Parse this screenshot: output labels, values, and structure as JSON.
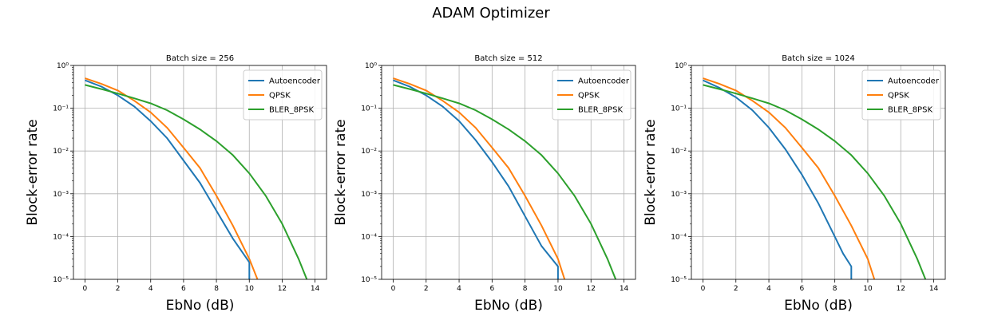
{
  "figure": {
    "title": "ADAM Optimizer"
  },
  "colors": {
    "Autoencoder": "#1f77b4",
    "QPSK": "#ff7f0e",
    "BLER_8PSK": "#2ca02c"
  },
  "chart_data": [
    {
      "type": "line",
      "title": "Batch size = 256",
      "xlabel": "EbNo (dB)",
      "ylabel": "Block-error rate",
      "xlim": [
        -0.7,
        14.7
      ],
      "ylim": [
        1e-05,
        1
      ],
      "yscale": "log",
      "xticks": [
        "0",
        "2",
        "4",
        "6",
        "8",
        "10",
        "12",
        "14"
      ],
      "yticks": [
        "10⁰",
        "10⁻¹",
        "10⁻²",
        "10⁻³",
        "10⁻⁴",
        "10⁻⁵"
      ],
      "grid": true,
      "legend_position": "top-right",
      "series": [
        {
          "name": "Autoencoder",
          "x": [
            0,
            1,
            2,
            3,
            4,
            5,
            6,
            7,
            8,
            9,
            10,
            10
          ],
          "y": [
            0.45,
            0.32,
            0.2,
            0.11,
            0.05,
            0.02,
            0.006,
            0.0018,
            0.0004,
            9e-05,
            2.5e-05,
            1e-05
          ]
        },
        {
          "name": "QPSK",
          "x": [
            0,
            1,
            2,
            3,
            4,
            5,
            6,
            7,
            8,
            9,
            10,
            10.5
          ],
          "y": [
            0.5,
            0.37,
            0.26,
            0.15,
            0.08,
            0.035,
            0.012,
            0.004,
            0.0009,
            0.00018,
            3e-05,
            1e-05
          ]
        },
        {
          "name": "BLER_8PSK",
          "x": [
            0,
            1,
            2,
            3,
            4,
            5,
            6,
            7,
            8,
            9,
            10,
            11,
            12,
            13,
            13.5
          ],
          "y": [
            0.35,
            0.28,
            0.22,
            0.17,
            0.13,
            0.09,
            0.055,
            0.032,
            0.017,
            0.008,
            0.003,
            0.0009,
            0.0002,
            3e-05,
            1e-05
          ]
        }
      ]
    },
    {
      "type": "line",
      "title": "Batch size = 512",
      "xlabel": "EbNo (dB)",
      "ylabel": "Block-error rate",
      "xlim": [
        -0.7,
        14.7
      ],
      "ylim": [
        1e-05,
        1
      ],
      "yscale": "log",
      "xticks": [
        "0",
        "2",
        "4",
        "6",
        "8",
        "10",
        "12",
        "14"
      ],
      "yticks": [
        "10⁰",
        "10⁻¹",
        "10⁻²",
        "10⁻³",
        "10⁻⁴",
        "10⁻⁵"
      ],
      "grid": true,
      "legend_position": "top-right",
      "series": [
        {
          "name": "Autoencoder",
          "x": [
            0,
            1,
            2,
            3,
            4,
            5,
            6,
            7,
            8,
            9,
            10,
            10
          ],
          "y": [
            0.45,
            0.32,
            0.2,
            0.11,
            0.05,
            0.018,
            0.0055,
            0.0015,
            0.0003,
            6e-05,
            2e-05,
            1e-05
          ]
        },
        {
          "name": "QPSK",
          "x": [
            0,
            1,
            2,
            3,
            4,
            5,
            6,
            7,
            8,
            9,
            10,
            10.4
          ],
          "y": [
            0.5,
            0.37,
            0.26,
            0.15,
            0.08,
            0.035,
            0.012,
            0.004,
            0.0009,
            0.00018,
            3e-05,
            1e-05
          ]
        },
        {
          "name": "BLER_8PSK",
          "x": [
            0,
            1,
            2,
            3,
            4,
            5,
            6,
            7,
            8,
            9,
            10,
            11,
            12,
            13,
            13.5
          ],
          "y": [
            0.35,
            0.28,
            0.22,
            0.17,
            0.13,
            0.09,
            0.055,
            0.032,
            0.017,
            0.008,
            0.003,
            0.0009,
            0.0002,
            3e-05,
            1e-05
          ]
        }
      ]
    },
    {
      "type": "line",
      "title": "Batch size = 1024",
      "xlabel": "EbNo (dB)",
      "ylabel": "Block-error rate",
      "xlim": [
        -0.7,
        14.7
      ],
      "ylim": [
        1e-05,
        1
      ],
      "yscale": "log",
      "xticks": [
        "0",
        "2",
        "4",
        "6",
        "8",
        "10",
        "12",
        "14"
      ],
      "yticks": [
        "10⁰",
        "10⁻¹",
        "10⁻²",
        "10⁻³",
        "10⁻⁴",
        "10⁻⁵"
      ],
      "grid": true,
      "legend_position": "top-right",
      "series": [
        {
          "name": "Autoencoder",
          "x": [
            0,
            1,
            2,
            3,
            4,
            5,
            6,
            7,
            8,
            8.5,
            9,
            9
          ],
          "y": [
            0.45,
            0.3,
            0.18,
            0.09,
            0.035,
            0.011,
            0.0028,
            0.0006,
            0.0001,
            4e-05,
            2e-05,
            1e-05
          ]
        },
        {
          "name": "QPSK",
          "x": [
            0,
            1,
            2,
            3,
            4,
            5,
            6,
            7,
            8,
            9,
            10,
            10.4
          ],
          "y": [
            0.5,
            0.37,
            0.26,
            0.15,
            0.08,
            0.035,
            0.012,
            0.004,
            0.0009,
            0.00018,
            3e-05,
            1e-05
          ]
        },
        {
          "name": "BLER_8PSK",
          "x": [
            0,
            1,
            2,
            3,
            4,
            5,
            6,
            7,
            8,
            9,
            10,
            11,
            12,
            13,
            13.5
          ],
          "y": [
            0.35,
            0.28,
            0.22,
            0.17,
            0.13,
            0.09,
            0.055,
            0.032,
            0.017,
            0.008,
            0.003,
            0.0009,
            0.0002,
            3e-05,
            1e-05
          ]
        }
      ]
    }
  ]
}
